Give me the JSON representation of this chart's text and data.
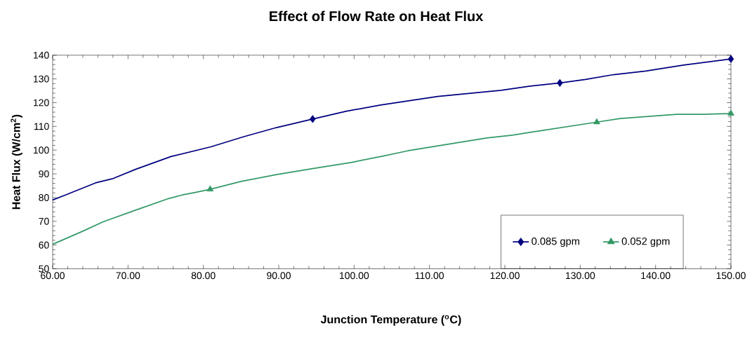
{
  "chart_data": {
    "type": "line",
    "title": "Effect of Flow Rate on Heat Flux",
    "xlabel": "Junction Temperature ($^{o}$C)",
    "ylabel": "Heat Flux (W/cm$^{2}$)",
    "xlim": [
      60,
      150
    ],
    "ylim": [
      50,
      140
    ],
    "xticks": [
      {
        "value": 60,
        "label": "60.00"
      },
      {
        "value": 70,
        "label": "70.00"
      },
      {
        "value": 80,
        "label": "80.00"
      },
      {
        "value": 90,
        "label": "90.00"
      },
      {
        "value": 100,
        "label": "100.00"
      },
      {
        "value": 110,
        "label": "110.00"
      },
      {
        "value": 120,
        "label": "120.00"
      },
      {
        "value": 130,
        "label": "130.00"
      },
      {
        "value": 140,
        "label": "140.00"
      },
      {
        "value": 150,
        "label": "150.00"
      }
    ],
    "yticks": [
      50,
      60,
      70,
      80,
      90,
      100,
      110,
      120,
      130,
      140
    ],
    "grid": false,
    "legend": "bottom right",
    "line_style": "solid",
    "series": [
      {
        "name": "0.085 gpm",
        "color": "#000080",
        "marker": "none",
        "x": [
          60,
          61.7,
          65.7,
          67.9,
          71.0,
          75.7,
          81.0,
          85.3,
          89.7,
          94.5,
          99.0,
          103.5,
          111.1,
          119.5,
          123.2,
          127.3,
          130.7,
          134.4,
          138.7,
          143.7,
          150
        ],
        "values": [
          79,
          81.1,
          86.2,
          87.9,
          91.9,
          97.3,
          101.4,
          105.6,
          109.5,
          113.1,
          116.4,
          119,
          122.6,
          125.2,
          126.9,
          128.3,
          129.8,
          131.8,
          133.3,
          135.8,
          138.4
        ]
      },
      {
        "name": "0.052 gpm",
        "color": "#339966",
        "marker": "none",
        "x": [
          60,
          63.9,
          66.7,
          71.0,
          75.4,
          77.2,
          78.8,
          80.9,
          85.0,
          89.7,
          94.9,
          99.6,
          104.0,
          107.1,
          117.6,
          121.0,
          124.4,
          132.2,
          135.3,
          142.8,
          146.5,
          150
        ],
        "values": [
          60.3,
          65.7,
          69.8,
          74.7,
          79.6,
          81.1,
          82.1,
          83.5,
          86.8,
          89.7,
          92.4,
          94.8,
          97.6,
          99.7,
          105.1,
          106.3,
          108.0,
          111.8,
          113.3,
          115.1,
          115.1,
          115.4
        ]
      },
      {
        "type": "scatter",
        "color": "#000080",
        "marker": "diamond",
        "x": [
          94.5,
          127.3,
          150
        ],
        "values": [
          113.1,
          128.3,
          138.4
        ]
      },
      {
        "type": "scatter",
        "color": "#339966",
        "marker": "triangle",
        "x": [
          80.9,
          132.2,
          150
        ],
        "values": [
          83.5,
          111.8,
          115.4
        ]
      }
    ]
  }
}
